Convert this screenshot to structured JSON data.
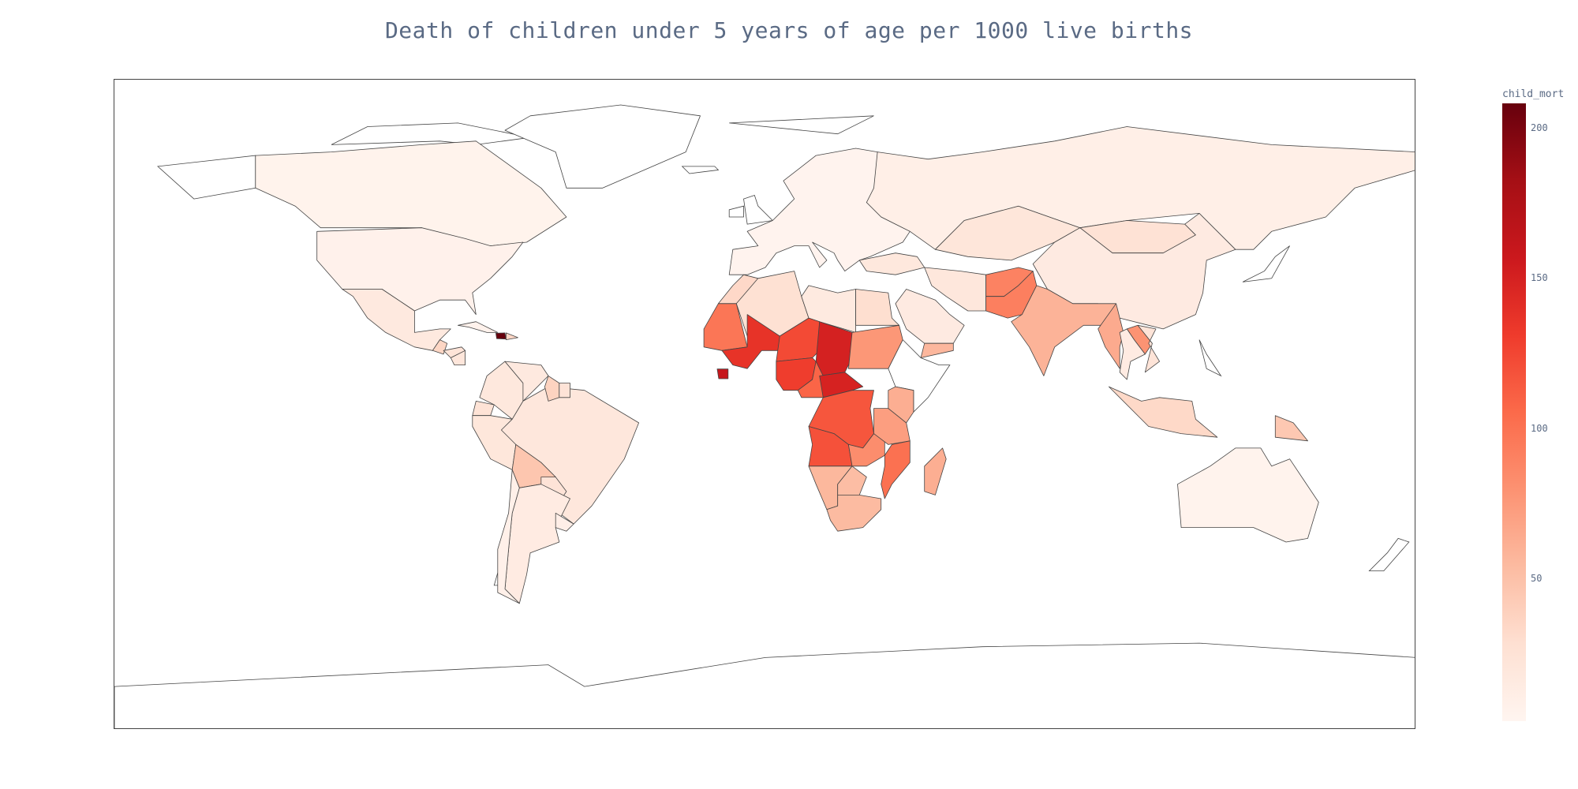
{
  "chart_data": {
    "type": "choropleth",
    "title": "Death of children under 5 years of age per 1000 live births",
    "color_variable": "child_mort",
    "colorscale": "Reds",
    "color_range": [
      2.6,
      208
    ],
    "colorbar_ticks": [
      50,
      100,
      150,
      200
    ],
    "regions": [
      {
        "name": "Canada",
        "value": 5.6
      },
      {
        "name": "United States",
        "value": 7.3
      },
      {
        "name": "Greenland",
        "value": 0
      },
      {
        "name": "Mexico",
        "value": 17.4
      },
      {
        "name": "Guatemala",
        "value": 35.4
      },
      {
        "name": "Honduras",
        "value": 23.1
      },
      {
        "name": "Nicaragua",
        "value": 21.0
      },
      {
        "name": "Haiti",
        "value": 208
      },
      {
        "name": "Dominican Republic",
        "value": 34.4
      },
      {
        "name": "Cuba",
        "value": 6.0
      },
      {
        "name": "Colombia",
        "value": 18.6
      },
      {
        "name": "Venezuela",
        "value": 17.1
      },
      {
        "name": "Ecuador",
        "value": 25.1
      },
      {
        "name": "Peru",
        "value": 20.3
      },
      {
        "name": "Brazil",
        "value": 19.8
      },
      {
        "name": "Bolivia",
        "value": 46.6
      },
      {
        "name": "Paraguay",
        "value": 24.1
      },
      {
        "name": "Argentina",
        "value": 14.5
      },
      {
        "name": "Chile",
        "value": 8.7
      },
      {
        "name": "Uruguay",
        "value": 10.6
      },
      {
        "name": "Guyana",
        "value": 37.6
      },
      {
        "name": "Suriname",
        "value": 24.1
      },
      {
        "name": "Russia",
        "value": 10.0
      },
      {
        "name": "Kazakhstan",
        "value": 21.5
      },
      {
        "name": "Mongolia",
        "value": 26.1
      },
      {
        "name": "China",
        "value": 15.7
      },
      {
        "name": "Europe",
        "value": 4.5
      },
      {
        "name": "Turkey",
        "value": 19.1
      },
      {
        "name": "Iran",
        "value": 19.3
      },
      {
        "name": "Saudi Arabia",
        "value": 15.7
      },
      {
        "name": "Yemen",
        "value": 56.3
      },
      {
        "name": "Afghanistan",
        "value": 90.2
      },
      {
        "name": "Pakistan",
        "value": 92.1
      },
      {
        "name": "India",
        "value": 58.8
      },
      {
        "name": "Myanmar",
        "value": 64.4
      },
      {
        "name": "Laos",
        "value": 78.9
      },
      {
        "name": "Thailand",
        "value": 14.9
      },
      {
        "name": "Vietnam",
        "value": 23.3
      },
      {
        "name": "Indonesia",
        "value": 33.3
      },
      {
        "name": "Papua New Guinea",
        "value": 45.0
      },
      {
        "name": "Australia",
        "value": 4.8
      },
      {
        "name": "Morocco",
        "value": 33.5
      },
      {
        "name": "Algeria",
        "value": 27.3
      },
      {
        "name": "Libya",
        "value": 16.6
      },
      {
        "name": "Egypt",
        "value": 29.1
      },
      {
        "name": "Mauritania",
        "value": 97.4
      },
      {
        "name": "Mali",
        "value": 137
      },
      {
        "name": "Niger",
        "value": 123
      },
      {
        "name": "Chad",
        "value": 150
      },
      {
        "name": "Sudan",
        "value": 76.7
      },
      {
        "name": "Nigeria",
        "value": 130
      },
      {
        "name": "Sierra Leone",
        "value": 160
      },
      {
        "name": "Cameroon",
        "value": 108
      },
      {
        "name": "Central African Republic",
        "value": 149
      },
      {
        "name": "Congo, Dem. Rep.",
        "value": 116
      },
      {
        "name": "Angola",
        "value": 119
      },
      {
        "name": "Zambia",
        "value": 83.1
      },
      {
        "name": "Tanzania",
        "value": 71.9
      },
      {
        "name": "Kenya",
        "value": 62.2
      },
      {
        "name": "Mozambique",
        "value": 101
      },
      {
        "name": "Madagascar",
        "value": 62.2
      },
      {
        "name": "Namibia",
        "value": 56.0
      },
      {
        "name": "Botswana",
        "value": 52.5
      },
      {
        "name": "South Africa",
        "value": 53.7
      }
    ]
  }
}
